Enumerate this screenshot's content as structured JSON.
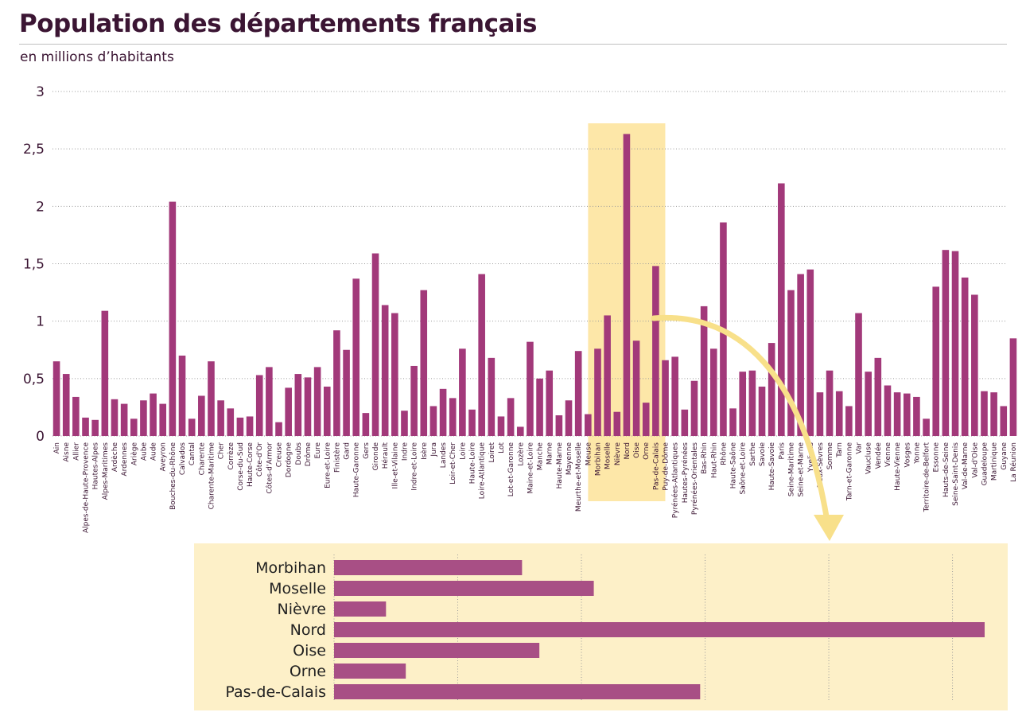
{
  "title": "Population des départements français",
  "subtitle": "en millions d’habitants",
  "colors": {
    "bar": "#a2397a",
    "zoom_bar": "#a84f85",
    "highlight": "#fde7a8",
    "zoom_panel": "#fdf0c8",
    "arrow": "#f8e08a",
    "text": "#3b1533"
  },
  "chart_data": [
    {
      "type": "bar",
      "title": "Population des départements français",
      "subtitle": "en millions d’habitants",
      "ylim": [
        0,
        3
      ],
      "yticks": [
        0,
        0.5,
        1,
        1.5,
        2,
        2.5,
        3
      ],
      "ytick_labels": [
        "0",
        "0,5",
        "1",
        "1,5",
        "2",
        "2,5",
        "3"
      ],
      "grid": "horizontal dotted",
      "highlight": [
        "Morbihan",
        "Pas-de-Calais"
      ],
      "categories": [
        "Ain",
        "Aisne",
        "Allier",
        "Alpes-de-Haute-Provence",
        "Hautes-Alpes",
        "Alpes-Maritimes",
        "Ardèche",
        "Ardennes",
        "Ariège",
        "Aube",
        "Aude",
        "Aveyron",
        "Bouches-du-Rhône",
        "Calvados",
        "Cantal",
        "Charente",
        "Charente-Maritime",
        "Cher",
        "Corrèze",
        "Corse-du-Sud",
        "Haute-Corse",
        "Côte-d'Or",
        "Côtes-d'Armor",
        "Creuse",
        "Dordogne",
        "Doubs",
        "Drôme",
        "Eure",
        "Eure-et-Loire",
        "Finistère",
        "Gard",
        "Haute-Garonne",
        "Gers",
        "Gironde",
        "Hérault",
        "Ille-et-Vilaine",
        "Indre",
        "Indre-et-Loire",
        "Isère",
        "Jura",
        "Landes",
        "Loir-et-Cher",
        "Loire",
        "Haute-Loire",
        "Loire-Atlantique",
        "Loiret",
        "Lot",
        "Lot-et-Garonne",
        "Lozère",
        "Maine-et-Loire",
        "Manche",
        "Marne",
        "Haute-Marne",
        "Mayenne",
        "Meurthe-et-Moselle",
        "Meuse",
        "Morbihan",
        "Moselle",
        "Nièvre",
        "Nord",
        "Oise",
        "Orne",
        "Pas-de-Calais",
        "Puy-de-Dôme",
        "Pyrénées-Atlantiques",
        "Hautes-Pyrénées",
        "Pyrénées-Orientales",
        "Bas-Rhin",
        "Haut-Rhin",
        "Rhône",
        "Haute-Saône",
        "Saône-et-Loire",
        "Sarthe",
        "Savoie",
        "Haute-Savoie",
        "Paris",
        "Seine-Maritime",
        "Seine-et-Marne",
        "Yvelines",
        "Deux-Sèvres",
        "Somme",
        "Tarn",
        "Tarn-et-Garonne",
        "Var",
        "Vaucluse",
        "Vendée",
        "Vienne",
        "Haute-Vienne",
        "Vosges",
        "Yonne",
        "Territoire-de-Belfort",
        "Essonne",
        "Hauts-de-Seine",
        "Seine-Saint-Denis",
        "Val-de-Marne",
        "Val-d'Oise",
        "Guadeloupe",
        "Martinique",
        "Guyane",
        "La Réunion"
      ],
      "values": [
        0.65,
        0.54,
        0.34,
        0.16,
        0.14,
        1.09,
        0.32,
        0.28,
        0.15,
        0.31,
        0.37,
        0.28,
        2.04,
        0.7,
        0.15,
        0.35,
        0.65,
        0.31,
        0.24,
        0.16,
        0.17,
        0.53,
        0.6,
        0.12,
        0.42,
        0.54,
        0.51,
        0.6,
        0.43,
        0.92,
        0.75,
        1.37,
        0.2,
        1.59,
        1.14,
        1.07,
        0.22,
        0.61,
        1.27,
        0.26,
        0.41,
        0.33,
        0.76,
        0.23,
        1.41,
        0.68,
        0.17,
        0.33,
        0.08,
        0.82,
        0.5,
        0.57,
        0.18,
        0.31,
        0.74,
        0.19,
        0.76,
        1.05,
        0.21,
        2.63,
        0.83,
        0.29,
        1.48,
        0.66,
        0.69,
        0.23,
        0.48,
        1.13,
        0.76,
        1.86,
        0.24,
        0.56,
        0.57,
        0.43,
        0.81,
        2.2,
        1.27,
        1.41,
        1.45,
        0.38,
        0.57,
        0.39,
        0.26,
        1.07,
        0.56,
        0.68,
        0.44,
        0.38,
        0.37,
        0.34,
        0.15,
        1.3,
        1.62,
        1.61,
        1.38,
        1.23,
        0.39,
        0.38,
        0.26,
        0.85
      ]
    },
    {
      "type": "bar",
      "orientation": "horizontal",
      "xlim": [
        0,
        2.7
      ],
      "categories": [
        "Morbihan",
        "Moselle",
        "Nièvre",
        "Nord",
        "Oise",
        "Orne",
        "Pas-de-Calais"
      ],
      "values": [
        0.76,
        1.05,
        0.21,
        2.63,
        0.83,
        0.29,
        1.48
      ]
    }
  ]
}
